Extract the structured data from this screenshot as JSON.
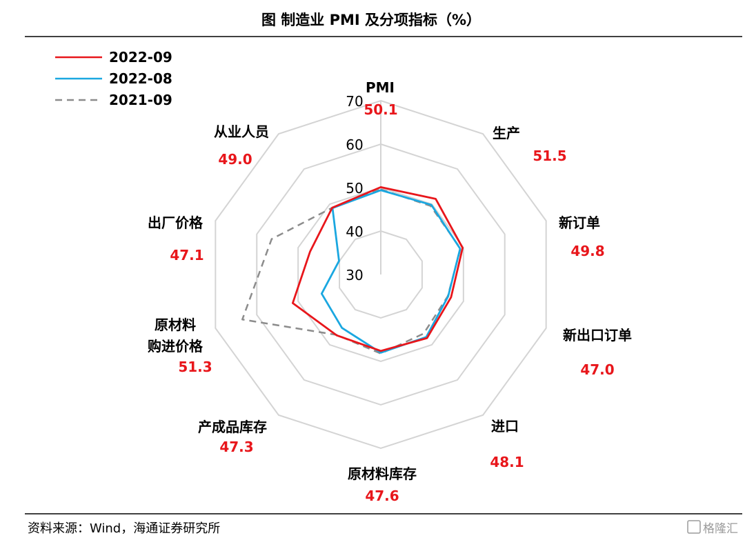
{
  "chart_data": {
    "type": "radar",
    "title": "图  制造业 PMI 及分项指标（%）",
    "axes": [
      "PMI",
      "生产",
      "新订单",
      "新出口订单",
      "进口",
      "原材料库存",
      "产成品库存",
      "原材料购进价格",
      "出厂价格",
      "从业人员"
    ],
    "axis_values_shown": [
      "50.1",
      "51.5",
      "49.8",
      "47.0",
      "48.1",
      "47.6",
      "47.3",
      "51.3",
      "47.1",
      "49.0"
    ],
    "r_ticks": [
      30,
      40,
      50,
      60,
      70
    ],
    "r_range": [
      30,
      70
    ],
    "series": [
      {
        "name": "2022-09",
        "color": "#e8161b",
        "dash": "solid",
        "values": [
          50.1,
          51.5,
          49.8,
          47.0,
          48.1,
          47.6,
          47.3,
          51.3,
          47.1,
          49.0
        ]
      },
      {
        "name": "2022-08",
        "color": "#1aa7e0",
        "dash": "solid",
        "values": [
          49.4,
          49.8,
          49.2,
          46.3,
          47.8,
          48.0,
          45.2,
          44.3,
          40.1,
          48.9
        ]
      },
      {
        "name": "2021-09",
        "color": "#8c8c8c",
        "dash": "dashed",
        "values": [
          49.6,
          49.5,
          49.3,
          46.2,
          46.8,
          48.2,
          47.2,
          63.5,
          56.4,
          49.0
        ]
      }
    ],
    "legend_position": "top-left",
    "grid": true
  },
  "source_text": "资料来源：Wind，海通证券研究所",
  "watermark_text": "格隆汇"
}
